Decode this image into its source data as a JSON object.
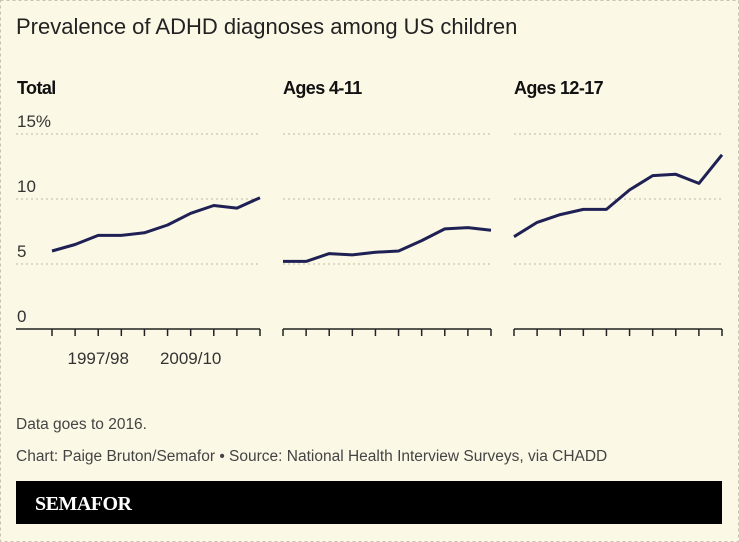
{
  "title": "Prevalence of ADHD diagnoses among US children",
  "colors": {
    "line": "#1f2155",
    "background": "#fcf8e6",
    "footer": "#000000"
  },
  "chart_data": [
    {
      "type": "line",
      "title": "Total",
      "ylim": [
        0,
        15
      ],
      "yticks": [
        0,
        5,
        10,
        15
      ],
      "ytick_labels": [
        "0",
        "5",
        "10",
        "15%"
      ],
      "grid": true,
      "xtick_labels": [
        "",
        "",
        "1997/98",
        "",
        "",
        "",
        "2009/10",
        "",
        "",
        ""
      ],
      "values": [
        6.0,
        6.5,
        7.2,
        7.2,
        7.4,
        8.0,
        8.9,
        9.5,
        9.3,
        10.1
      ]
    },
    {
      "type": "line",
      "title": "Ages 4-11",
      "ylim": [
        0,
        15
      ],
      "grid": true,
      "values": [
        5.2,
        5.2,
        5.8,
        5.7,
        5.9,
        6.0,
        6.8,
        7.7,
        7.8,
        7.6
      ]
    },
    {
      "type": "line",
      "title": "Ages 12-17",
      "ylim": [
        0,
        15
      ],
      "grid": true,
      "values": [
        7.1,
        8.2,
        8.8,
        9.2,
        9.2,
        10.7,
        11.8,
        11.9,
        11.2,
        13.4
      ]
    }
  ],
  "note": "Data goes to 2016.",
  "credit": "Chart: Paige Bruton/Semafor • Source: National Health Interview Surveys, via CHADD",
  "brand": "SEMAFOR"
}
